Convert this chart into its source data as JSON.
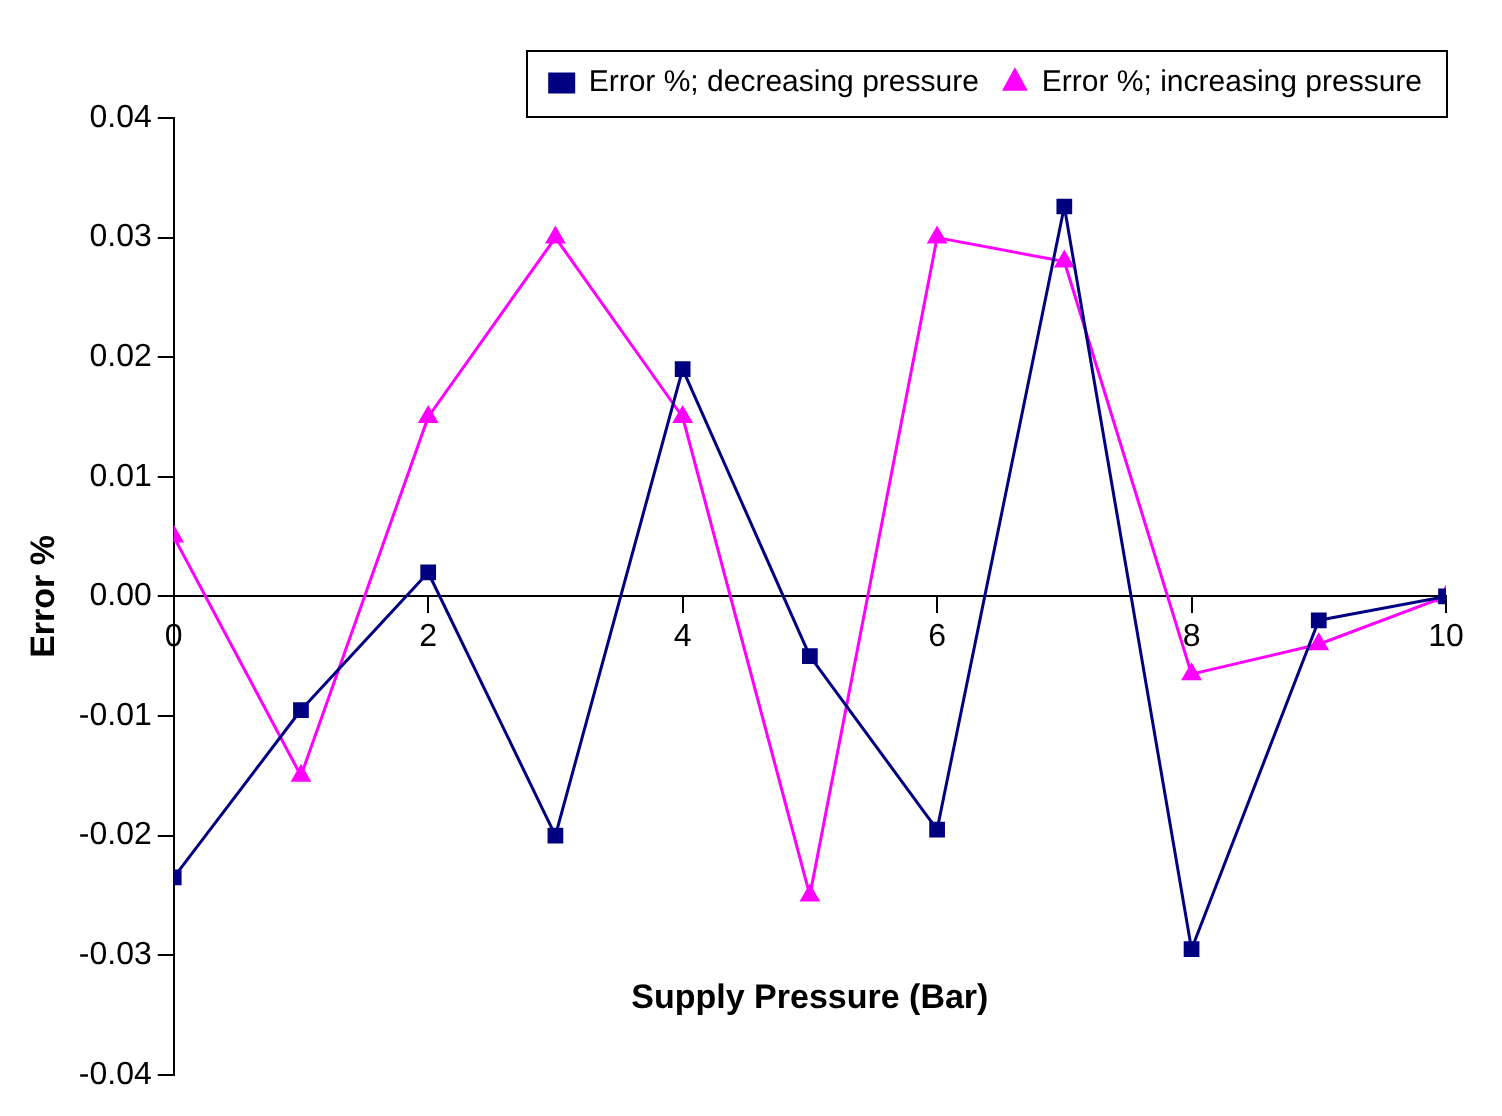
{
  "chart_data": {
    "type": "line",
    "xlabel": "Supply Pressure (Bar)",
    "ylabel": "Error %",
    "x": [
      0,
      1,
      2,
      3,
      4,
      5,
      6,
      7,
      8,
      9,
      10
    ],
    "series": [
      {
        "name": "Error %; decreasing pressure",
        "color": "#000080",
        "marker": "square",
        "values": [
          -0.0235,
          -0.0095,
          0.002,
          -0.02,
          0.019,
          -0.005,
          -0.0195,
          0.0326,
          -0.0295,
          -0.002,
          0
        ]
      },
      {
        "name": "Error %; increasing pressure",
        "color": "#ff00ff",
        "marker": "triangle",
        "values": [
          0.005,
          -0.015,
          0.015,
          0.03,
          0.015,
          -0.025,
          0.03,
          0.028,
          -0.0065,
          -0.004,
          0
        ]
      }
    ],
    "xlim": [
      0,
      10
    ],
    "xticks": [
      0,
      2,
      4,
      6,
      8,
      10
    ],
    "ylim": [
      -0.04,
      0.04
    ],
    "yticks": [
      -0.04,
      -0.03,
      -0.02,
      -0.01,
      {
        "value": 0,
        "label": "0.00"
      },
      0.01,
      0.02,
      0.03,
      0.04
    ],
    "grid": false,
    "legend": "top right",
    "line_style": "solid"
  }
}
